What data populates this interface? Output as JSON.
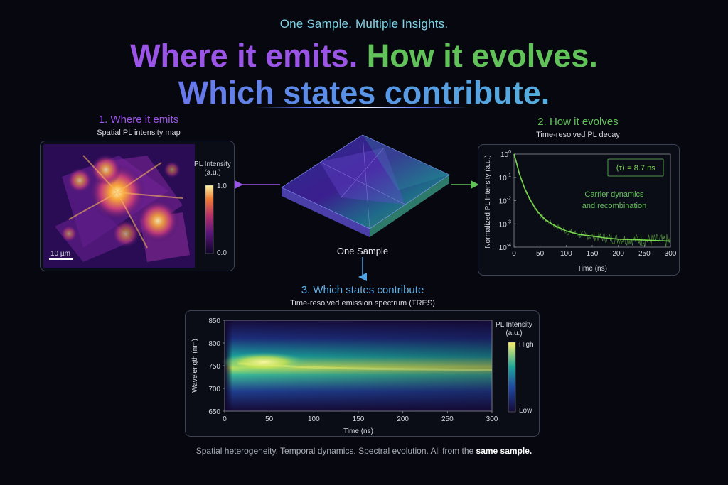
{
  "header": {
    "tagline": "One Sample. Multiple Insights.",
    "line1_part1": "Where it emits.",
    "line1_part2": "How it evolves.",
    "line2": "Which states contribute."
  },
  "center": {
    "label": "One Sample"
  },
  "section1": {
    "title": "1. Where it emits",
    "subtitle": "Spatial PL intensity map",
    "colorbar_title_1": "PL Intensity",
    "colorbar_title_2": "(a.u.)",
    "colorbar_max": "1.0",
    "colorbar_min": "0.0",
    "scalebar": "10 µm"
  },
  "section2": {
    "title": "2. How it evolves",
    "subtitle": "Time-resolved PL decay",
    "lifetime": "⟨τ⟩ = 8.7 ns",
    "annotation_1": "Carrier dynamics",
    "annotation_2": "and recombination"
  },
  "section3": {
    "title": "3. Which states contribute",
    "subtitle": "Time-resolved emission spectrum (TRES)",
    "colorbar_title_1": "PL Intensity",
    "colorbar_title_2": "(a.u.)",
    "colorbar_high": "High",
    "colorbar_low": "Low"
  },
  "footer": {
    "text": "Spatial heterogeneity. Temporal dynamics. Spectral evolution.  All from the",
    "bold": "same sample."
  },
  "colors": {
    "purple": "#9a54e6",
    "green": "#62c25a",
    "teal": "#4fc9d6",
    "decay_line": "#7bd84e"
  },
  "chart_data": [
    {
      "type": "line",
      "x": [
        0,
        5,
        10,
        20,
        30,
        40,
        50,
        60,
        80,
        100,
        125,
        150,
        175,
        200,
        250,
        300
      ],
      "series": [
        {
          "values": [
            1.0,
            0.4,
            0.15,
            0.035,
            0.012,
            0.005,
            0.0025,
            0.0015,
            0.0008,
            0.0005,
            0.00035,
            0.0003,
            0.00025,
            0.00022,
            0.0002,
            0.00018
          ]
        }
      ],
      "xlabel": "Time (ns)",
      "ylabel": "Normalized PL Intensity (a.u.)",
      "xlim": [
        0,
        300
      ],
      "ylim": [
        0.0001,
        1
      ],
      "y_scale": "log",
      "xticks": [
        "0",
        "50",
        "100",
        "150",
        "200",
        "250",
        "300"
      ],
      "yticks": [
        {
          "base": "10",
          "exp": "0"
        },
        {
          "base": "10",
          "exp": "-1"
        },
        {
          "base": "10",
          "exp": "-2"
        },
        {
          "base": "10",
          "exp": "-3"
        },
        {
          "base": "10",
          "exp": "-4"
        }
      ]
    },
    {
      "type": "heatmap",
      "xlabel": "Time (ns)",
      "ylabel": "Wavelength (nm)",
      "xlim": [
        0,
        300
      ],
      "ylim": [
        650,
        850
      ],
      "xticks": [
        "0",
        "50",
        "100",
        "150",
        "200",
        "250",
        "300"
      ],
      "yticks": [
        "850",
        "800",
        "750",
        "700",
        "650"
      ],
      "peak_wavelength_nm": [
        755,
        752,
        748,
        745,
        743,
        742,
        741
      ],
      "peak_times_ns": [
        15,
        40,
        80,
        120,
        170,
        230,
        300
      ]
    }
  ]
}
